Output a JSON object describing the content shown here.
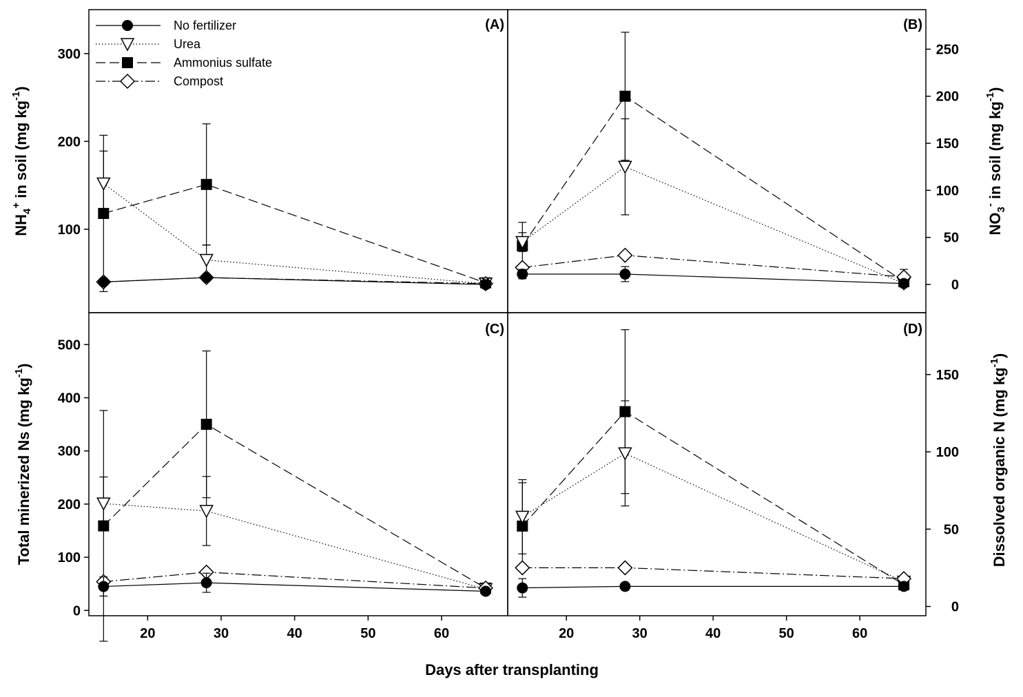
{
  "figure": {
    "x_axis_title": "Days after transplanting",
    "legend": [
      {
        "label": "No fertilizer",
        "marker": "filled-circle",
        "dash": "solid"
      },
      {
        "label": "Urea",
        "marker": "open-triangle-down",
        "dash": "dotted"
      },
      {
        "label": "Ammonius sulfate",
        "marker": "filled-square",
        "dash": "dashed"
      },
      {
        "label": "Compost",
        "marker": "open-diamond",
        "dash": "dash-dot"
      }
    ],
    "colors": {
      "line": "#000000",
      "background": "#ffffff"
    }
  },
  "chart_data": [
    {
      "type": "line",
      "panel_label": "(A)",
      "ylabel_main": "NH",
      "ylabel_sub": "4",
      "ylabel_sup": "+",
      "ylabel_rest": " in soil (mg kg",
      "ylabel_sup2": "-1",
      "ylabel_end": ")",
      "yaxis_side": "left",
      "xlim": [
        12,
        69
      ],
      "ylim": [
        5,
        350
      ],
      "xticks": [
        20,
        30,
        40,
        50,
        60
      ],
      "yticks": [
        100,
        200,
        300
      ],
      "x": [
        14,
        28,
        66
      ],
      "series": [
        {
          "name": "No fertilizer",
          "values": [
            40,
            45,
            37
          ],
          "errors": [
            0,
            0,
            0
          ]
        },
        {
          "name": "Urea",
          "values": [
            152,
            65,
            38
          ],
          "errors": [
            37,
            17,
            0
          ]
        },
        {
          "name": "Ammonius sulfate",
          "values": [
            118,
            151,
            39
          ],
          "errors": [
            89,
            69,
            0
          ]
        },
        {
          "name": "Compost",
          "values": [
            40,
            45,
            38
          ],
          "errors": [
            0,
            0,
            0
          ]
        }
      ]
    },
    {
      "type": "line",
      "panel_label": "(B)",
      "ylabel_main": "NO",
      "ylabel_sub": "3",
      "ylabel_sup": "-",
      "ylabel_rest": " in soil (mg kg",
      "ylabel_sup2": "-1",
      "ylabel_end": ")",
      "yaxis_side": "right",
      "xlim": [
        12,
        69
      ],
      "ylim": [
        -30,
        292
      ],
      "xticks": [
        20,
        30,
        40,
        50,
        60
      ],
      "yticks": [
        0,
        50,
        100,
        150,
        200,
        250
      ],
      "x": [
        14,
        28,
        66
      ],
      "series": [
        {
          "name": "No fertilizer",
          "values": [
            11,
            11,
            1
          ],
          "errors": [
            5,
            8,
            2
          ]
        },
        {
          "name": "Urea",
          "values": [
            45,
            125,
            1
          ],
          "errors": [
            10,
            51,
            0
          ]
        },
        {
          "name": "Ammonius sulfate",
          "values": [
            41,
            200,
            3
          ],
          "errors": [
            25,
            68,
            0
          ]
        },
        {
          "name": "Compost",
          "values": [
            18,
            31,
            8
          ],
          "errors": [
            0,
            0,
            8
          ]
        }
      ]
    },
    {
      "type": "line",
      "panel_label": "(C)",
      "ylabel_text": "Total minerized Ns (mg kg",
      "ylabel_sup2": "-1",
      "ylabel_end": ")",
      "yaxis_side": "left",
      "xlim": [
        12,
        69
      ],
      "ylim": [
        -10,
        560
      ],
      "xticks": [
        20,
        30,
        40,
        50,
        60
      ],
      "yticks": [
        0,
        100,
        200,
        300,
        400,
        500
      ],
      "x": [
        14,
        28,
        66
      ],
      "series": [
        {
          "name": "No fertilizer",
          "values": [
            45,
            52,
            36
          ],
          "errors": [
            18,
            18,
            0
          ]
        },
        {
          "name": "Urea",
          "values": [
            201,
            187,
            40
          ],
          "errors": [
            50,
            65,
            0
          ]
        },
        {
          "name": "Ammonius sulfate",
          "values": [
            159,
            350,
            42
          ],
          "errors": [
            217,
            138,
            0
          ]
        },
        {
          "name": "Compost",
          "values": [
            54,
            72,
            42
          ],
          "errors": [
            0,
            0,
            0
          ]
        }
      ]
    },
    {
      "type": "line",
      "panel_label": "(D)",
      "ylabel_text": "Dissolved organic N (mg kg",
      "ylabel_sup2": "-1",
      "ylabel_end": ")",
      "yaxis_side": "right",
      "xlim": [
        12,
        69
      ],
      "ylim": [
        -6,
        190
      ],
      "xticks": [
        20,
        30,
        40,
        50,
        60
      ],
      "yticks": [
        0,
        50,
        100,
        150
      ],
      "x": [
        14,
        28,
        66
      ],
      "series": [
        {
          "name": "No fertilizer",
          "values": [
            12,
            13,
            13
          ],
          "errors": [
            6,
            0,
            0
          ]
        },
        {
          "name": "Urea",
          "values": [
            58,
            99,
            16
          ],
          "errors": [
            24,
            34,
            0
          ]
        },
        {
          "name": "Ammonius sulfate",
          "values": [
            52,
            126,
            14
          ],
          "errors": [
            28,
            53,
            0
          ]
        },
        {
          "name": "Compost",
          "values": [
            25,
            25,
            18
          ],
          "errors": [
            0,
            0,
            0
          ]
        }
      ]
    }
  ]
}
